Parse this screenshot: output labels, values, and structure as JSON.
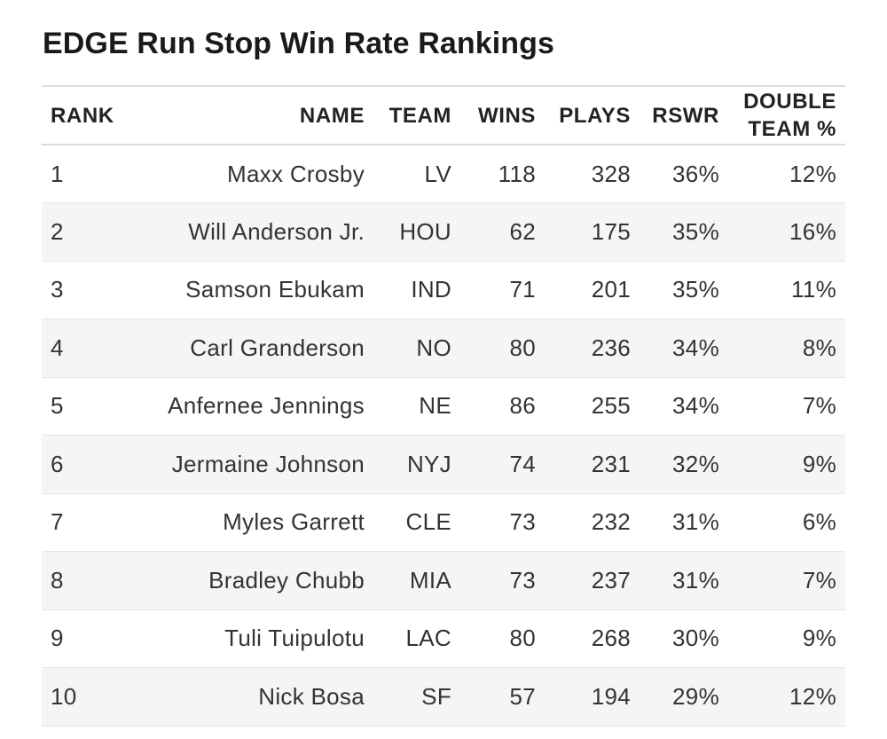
{
  "chart_data": {
    "type": "table",
    "title": "EDGE Run Stop Win Rate Rankings",
    "columns": [
      "RANK",
      "NAME",
      "TEAM",
      "WINS",
      "PLAYS",
      "RSWR",
      "DOUBLE TEAM %"
    ],
    "header_lines": {
      "double_team_line1": "DOUBLE",
      "double_team_line2": "TEAM %"
    },
    "rows": [
      {
        "rank": "1",
        "name": "Maxx Crosby",
        "team": "LV",
        "wins": "118",
        "plays": "328",
        "rswr": "36%",
        "double_team": "12%"
      },
      {
        "rank": "2",
        "name": "Will Anderson Jr.",
        "team": "HOU",
        "wins": "62",
        "plays": "175",
        "rswr": "35%",
        "double_team": "16%"
      },
      {
        "rank": "3",
        "name": "Samson Ebukam",
        "team": "IND",
        "wins": "71",
        "plays": "201",
        "rswr": "35%",
        "double_team": "11%"
      },
      {
        "rank": "4",
        "name": "Carl Granderson",
        "team": "NO",
        "wins": "80",
        "plays": "236",
        "rswr": "34%",
        "double_team": "8%"
      },
      {
        "rank": "5",
        "name": "Anfernee Jennings",
        "team": "NE",
        "wins": "86",
        "plays": "255",
        "rswr": "34%",
        "double_team": "7%"
      },
      {
        "rank": "6",
        "name": "Jermaine Johnson",
        "team": "NYJ",
        "wins": "74",
        "plays": "231",
        "rswr": "32%",
        "double_team": "9%"
      },
      {
        "rank": "7",
        "name": "Myles Garrett",
        "team": "CLE",
        "wins": "73",
        "plays": "232",
        "rswr": "31%",
        "double_team": "6%"
      },
      {
        "rank": "8",
        "name": "Bradley Chubb",
        "team": "MIA",
        "wins": "73",
        "plays": "237",
        "rswr": "31%",
        "double_team": "7%"
      },
      {
        "rank": "9",
        "name": "Tuli Tuipulotu",
        "team": "LAC",
        "wins": "80",
        "plays": "268",
        "rswr": "30%",
        "double_team": "9%"
      },
      {
        "rank": "10",
        "name": "Nick Bosa",
        "team": "SF",
        "wins": "57",
        "plays": "194",
        "rswr": "29%",
        "double_team": "12%"
      }
    ]
  },
  "colors": {
    "name_link": "#2f6aa8",
    "stripe": "#f5f5f6",
    "rule": "#dcdcdc"
  }
}
